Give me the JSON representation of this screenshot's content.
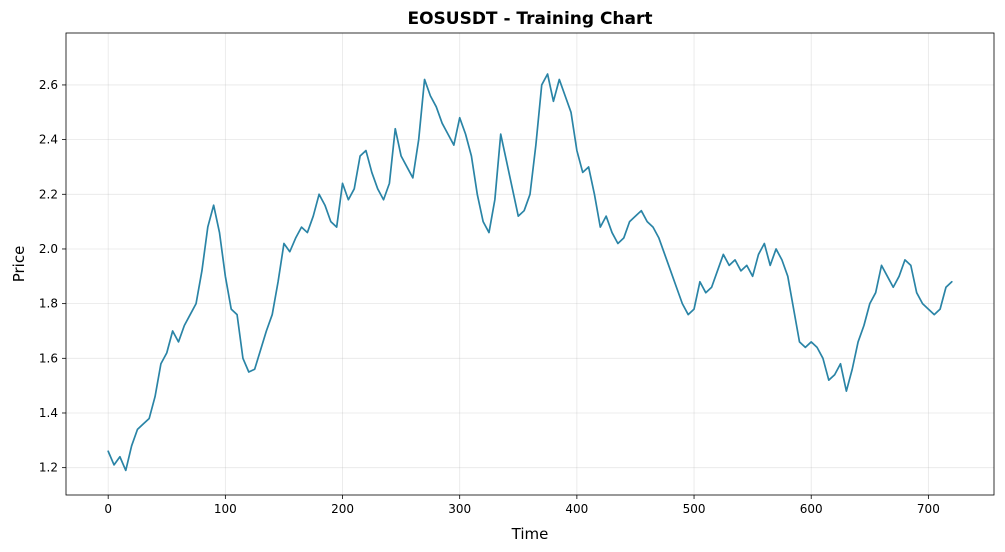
{
  "chart_data": {
    "type": "line",
    "title": "EOSUSDT - Training Chart",
    "xlabel": "Time",
    "ylabel": "Price",
    "xlim": [
      -36,
      756
    ],
    "ylim": [
      1.1,
      2.79
    ],
    "xticks": [
      0,
      100,
      200,
      300,
      400,
      500,
      600,
      700
    ],
    "yticks": [
      1.2,
      1.4,
      1.6,
      1.8,
      2.0,
      2.2,
      2.4,
      2.6
    ],
    "ytick_labels": [
      "1.2",
      "1.4",
      "1.6",
      "1.8",
      "2.0",
      "2.2",
      "2.4",
      "2.6"
    ],
    "grid": true,
    "line_color": "#2a84a6",
    "series": [
      {
        "x": [
          0,
          5,
          10,
          15,
          20,
          25,
          30,
          35,
          40,
          45,
          50,
          55,
          60,
          65,
          70,
          75,
          80,
          85,
          90,
          95,
          100,
          105,
          110,
          115,
          120,
          125,
          130,
          135,
          140,
          145,
          150,
          155,
          160,
          165,
          170,
          175,
          180,
          185,
          190,
          195,
          200,
          205,
          210,
          215,
          220,
          225,
          230,
          235,
          240,
          245,
          250,
          255,
          260,
          265,
          270,
          275,
          280,
          285,
          290,
          295,
          300,
          305,
          310,
          315,
          320,
          325,
          330,
          335,
          340,
          345,
          350,
          355,
          360,
          365,
          370,
          375,
          380,
          385,
          390,
          395,
          400,
          405,
          410,
          415,
          420,
          425,
          430,
          435,
          440,
          445,
          450,
          455,
          460,
          465,
          470,
          475,
          480,
          485,
          490,
          495,
          500,
          505,
          510,
          515,
          520,
          525,
          530,
          535,
          540,
          545,
          550,
          555,
          560,
          565,
          570,
          575,
          580,
          585,
          590,
          595,
          600,
          605,
          610,
          615,
          620,
          625,
          630,
          635,
          640,
          645,
          650,
          655,
          660,
          665,
          670,
          675,
          680,
          685,
          690,
          695,
          700,
          705,
          710,
          715,
          720
        ],
        "values": [
          1.26,
          1.21,
          1.24,
          1.19,
          1.28,
          1.34,
          1.36,
          1.38,
          1.46,
          1.58,
          1.62,
          1.7,
          1.66,
          1.72,
          1.76,
          1.8,
          1.92,
          2.08,
          2.16,
          2.06,
          1.9,
          1.78,
          1.76,
          1.6,
          1.55,
          1.56,
          1.63,
          1.7,
          1.76,
          1.88,
          2.02,
          1.99,
          2.04,
          2.08,
          2.06,
          2.12,
          2.2,
          2.16,
          2.1,
          2.08,
          2.24,
          2.18,
          2.22,
          2.34,
          2.36,
          2.28,
          2.22,
          2.18,
          2.24,
          2.44,
          2.34,
          2.3,
          2.26,
          2.4,
          2.62,
          2.56,
          2.52,
          2.46,
          2.42,
          2.38,
          2.48,
          2.42,
          2.34,
          2.2,
          2.1,
          2.06,
          2.18,
          2.42,
          2.32,
          2.22,
          2.12,
          2.14,
          2.2,
          2.38,
          2.6,
          2.64,
          2.54,
          2.62,
          2.56,
          2.5,
          2.36,
          2.28,
          2.3,
          2.2,
          2.08,
          2.12,
          2.06,
          2.02,
          2.04,
          2.1,
          2.12,
          2.14,
          2.1,
          2.08,
          2.04,
          1.98,
          1.92,
          1.86,
          1.8,
          1.76,
          1.78,
          1.88,
          1.84,
          1.86,
          1.92,
          1.98,
          1.94,
          1.96,
          1.92,
          1.94,
          1.9,
          1.98,
          2.02,
          1.94,
          2.0,
          1.96,
          1.9,
          1.78,
          1.66,
          1.64,
          1.66,
          1.64,
          1.6,
          1.52,
          1.54,
          1.58,
          1.48,
          1.56,
          1.66,
          1.72,
          1.8,
          1.84,
          1.94,
          1.9,
          1.86,
          1.9,
          1.96,
          1.94,
          1.84,
          1.8,
          1.78,
          1.76,
          1.78,
          1.86,
          1.88
        ]
      }
    ]
  }
}
